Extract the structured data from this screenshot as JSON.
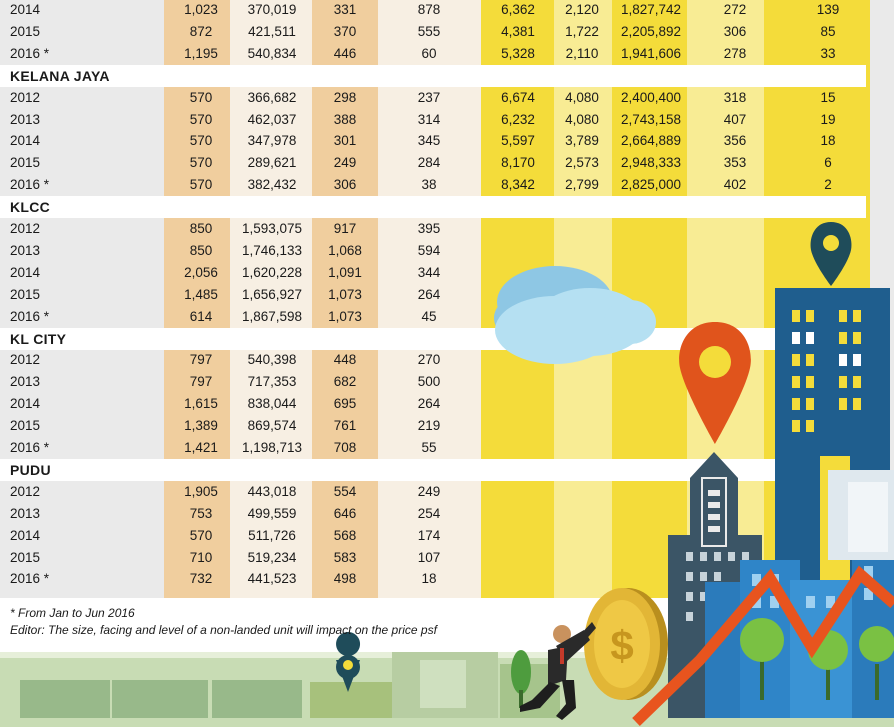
{
  "footnotes": {
    "period": "* From Jan to Jun 2016",
    "editor": "Editor: The size, facing and level of a non-landed unit will impact on the price psf"
  },
  "colors": {
    "tan_col": "#f0ce9e",
    "tan_light": "#f7efe3",
    "yellow_col": "#f4dc3a",
    "yellow_light": "#f8ec94",
    "section_bg": "#ffffff",
    "pin_orange": "#e0541c",
    "pin_teal": "#1f4c5a",
    "building_blue": "#1f5e8e",
    "trend_orange": "#e8541e"
  },
  "icons": [
    "cloud-icon",
    "location-pin-icon",
    "coin-icon",
    "businessman-icon",
    "trend-line-icon",
    "building-icon",
    "tree-icon"
  ],
  "rows": [
    {
      "type": "row",
      "label": "2014",
      "cells": [
        "1,023",
        "370,019",
        "331",
        "878",
        "6,362",
        "2,120",
        "1,827,742",
        "272",
        "139"
      ]
    },
    {
      "type": "row",
      "label": "2015",
      "cells": [
        "872",
        "421,511",
        "370",
        "555",
        "4,381",
        "1,722",
        "2,205,892",
        "306",
        "85"
      ]
    },
    {
      "type": "row",
      "label": "2016 *",
      "cells": [
        "1,195",
        "540,834",
        "446",
        "60",
        "5,328",
        "2,110",
        "1,941,606",
        "278",
        "33"
      ]
    },
    {
      "type": "section",
      "label": "KELANA JAYA"
    },
    {
      "type": "row",
      "label": "2012",
      "cells": [
        "570",
        "366,682",
        "298",
        "237",
        "6,674",
        "4,080",
        "2,400,400",
        "318",
        "15"
      ]
    },
    {
      "type": "row",
      "label": "2013",
      "cells": [
        "570",
        "462,037",
        "388",
        "314",
        "6,232",
        "4,080",
        "2,743,158",
        "407",
        "19"
      ]
    },
    {
      "type": "row",
      "label": "2014",
      "cells": [
        "570",
        "347,978",
        "301",
        "345",
        "5,597",
        "3,789",
        "2,664,889",
        "356",
        "18"
      ]
    },
    {
      "type": "row",
      "label": "2015",
      "cells": [
        "570",
        "289,621",
        "249",
        "284",
        "8,170",
        "2,573",
        "2,948,333",
        "353",
        "6"
      ]
    },
    {
      "type": "row",
      "label": "2016 *",
      "cells": [
        "570",
        "382,432",
        "306",
        "38",
        "8,342",
        "2,799",
        "2,825,000",
        "402",
        "2"
      ]
    },
    {
      "type": "section",
      "label": "KLCC"
    },
    {
      "type": "row",
      "label": "2012",
      "cells": [
        "850",
        "1,593,075",
        "917",
        "395",
        "",
        "",
        "",
        "",
        ""
      ]
    },
    {
      "type": "row",
      "label": "2013",
      "cells": [
        "850",
        "1,746,133",
        "1,068",
        "594",
        "",
        "",
        "",
        "",
        ""
      ]
    },
    {
      "type": "row",
      "label": "2014",
      "cells": [
        "2,056",
        "1,620,228",
        "1,091",
        "344",
        "",
        "",
        "",
        "",
        ""
      ]
    },
    {
      "type": "row",
      "label": "2015",
      "cells": [
        "1,485",
        "1,656,927",
        "1,073",
        "264",
        "",
        "",
        "",
        "",
        ""
      ]
    },
    {
      "type": "row",
      "label": "2016 *",
      "cells": [
        "614",
        "1,867,598",
        "1,073",
        "45",
        "",
        "",
        "",
        "",
        ""
      ]
    },
    {
      "type": "section",
      "label": "KL CITY"
    },
    {
      "type": "row",
      "label": "2012",
      "cells": [
        "797",
        "540,398",
        "448",
        "270",
        "",
        "",
        "",
        "",
        ""
      ]
    },
    {
      "type": "row",
      "label": "2013",
      "cells": [
        "797",
        "717,353",
        "682",
        "500",
        "",
        "",
        "",
        "",
        ""
      ]
    },
    {
      "type": "row",
      "label": "2014",
      "cells": [
        "1,615",
        "838,044",
        "695",
        "264",
        "",
        "",
        "",
        "",
        ""
      ]
    },
    {
      "type": "row",
      "label": "2015",
      "cells": [
        "1,389",
        "869,574",
        "761",
        "219",
        "",
        "",
        "",
        "",
        ""
      ]
    },
    {
      "type": "row",
      "label": "2016 *",
      "cells": [
        "1,421",
        "1,198,713",
        "708",
        "55",
        "",
        "",
        "",
        "",
        ""
      ]
    },
    {
      "type": "section",
      "label": "PUDU"
    },
    {
      "type": "row",
      "label": "2012",
      "cells": [
        "1,905",
        "443,018",
        "554",
        "249",
        "",
        "",
        "",
        "",
        ""
      ]
    },
    {
      "type": "row",
      "label": "2013",
      "cells": [
        "753",
        "499,559",
        "646",
        "254",
        "",
        "",
        "",
        "",
        ""
      ]
    },
    {
      "type": "row",
      "label": "2014",
      "cells": [
        "570",
        "511,726",
        "568",
        "174",
        "",
        "",
        "",
        "",
        ""
      ]
    },
    {
      "type": "row",
      "label": "2015",
      "cells": [
        "710",
        "519,234",
        "583",
        "107",
        "",
        "",
        "",
        "",
        ""
      ]
    },
    {
      "type": "row",
      "label": "2016 *",
      "cells": [
        "732",
        "441,523",
        "498",
        "18",
        "",
        "",
        "",
        "",
        ""
      ]
    }
  ]
}
